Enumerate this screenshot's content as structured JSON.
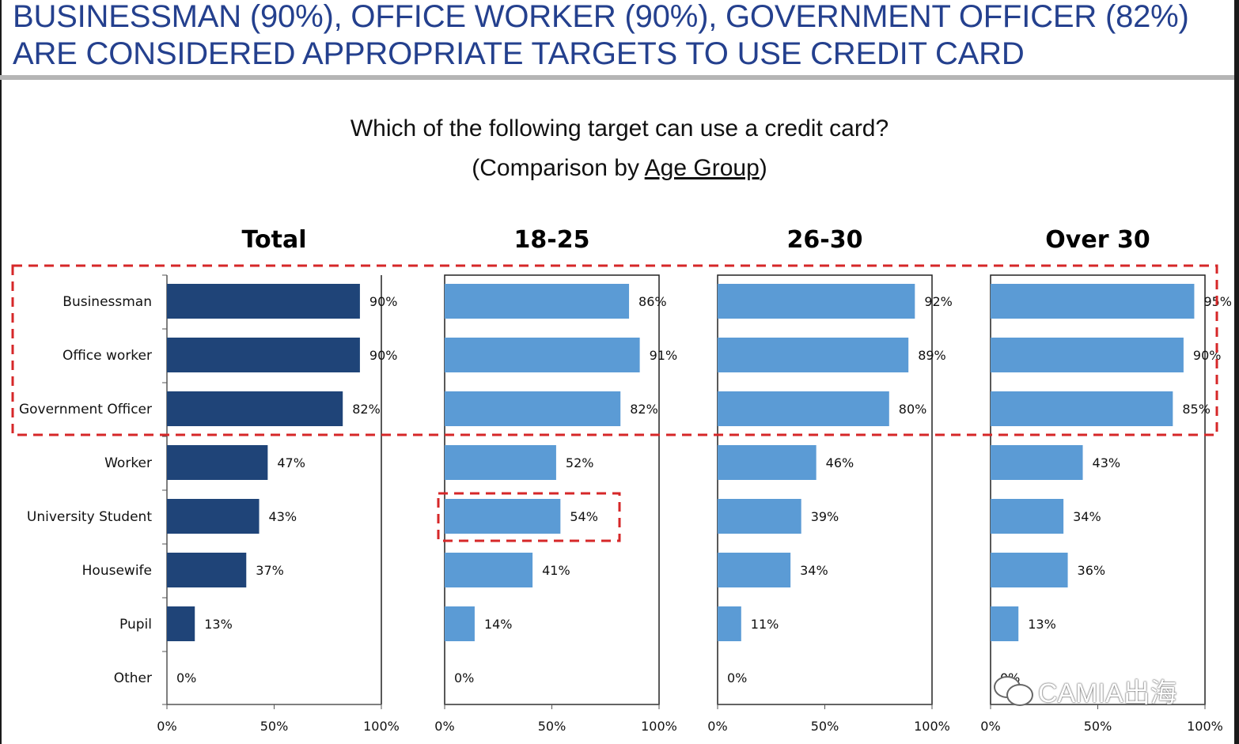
{
  "header": {
    "line1": "BUSINESSMAN (90%), OFFICE WORKER (90%), GOVERNMENT OFFICER (82%)",
    "line2": "ARE CONSIDERED APPROPRIATE TARGETS TO USE CREDIT CARD"
  },
  "question": "Which of the following target can use a credit card?",
  "subtitle_prefix": "(Comparison by ",
  "subtitle_underlined": "Age Group",
  "subtitle_suffix": ")",
  "watermark": "CAMIA出海",
  "colors": {
    "total": "#1f4478",
    "group": "#5b9bd5",
    "highlight": "#d62728",
    "headline": "#24408e"
  },
  "chart_data": {
    "type": "bar",
    "orientation": "horizontal",
    "categories": [
      "Businessman",
      "Office worker",
      "Government Officer",
      "Worker",
      "University Student",
      "Housewife",
      "Pupil",
      "Other"
    ],
    "xlim": [
      0,
      100
    ],
    "ticks": [
      "0%",
      "50%",
      "100%"
    ],
    "value_suffix": "%",
    "panels": [
      {
        "title": "Total",
        "values": [
          90,
          90,
          82,
          47,
          43,
          37,
          13,
          0
        ]
      },
      {
        "title": "18-25",
        "values": [
          86,
          91,
          82,
          52,
          54,
          41,
          14,
          0
        ]
      },
      {
        "title": "26-30",
        "values": [
          92,
          89,
          80,
          46,
          39,
          34,
          11,
          0
        ]
      },
      {
        "title": "Over 30",
        "values": [
          95,
          90,
          85,
          43,
          34,
          36,
          13,
          0
        ]
      }
    ],
    "highlights": [
      {
        "description": "top three categories across all panels"
      },
      {
        "description": "University Student in 18-25 panel"
      }
    ]
  }
}
